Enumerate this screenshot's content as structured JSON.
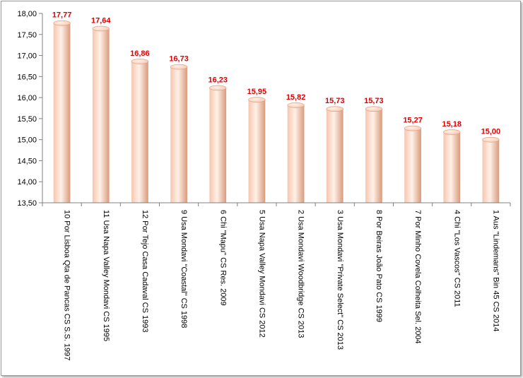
{
  "chart_data": {
    "type": "bar",
    "orientation": "vertical",
    "title": "",
    "xlabel": "",
    "ylabel": "",
    "ylim": [
      13.5,
      18.0
    ],
    "ytick_step": 0.5,
    "ytick_labels": [
      "13,50",
      "14,00",
      "14,50",
      "15,00",
      "15,50",
      "16,00",
      "16,50",
      "17,00",
      "17,50",
      "18,00"
    ],
    "grid": false,
    "legend": "none",
    "categories": [
      "10 Por Lisboa Qta de Pancas CS S.S. 1997",
      "11 Usa Napa Valley Mondavi CS 1995",
      "12 Por Tejo Casa Cadaval CS 1993",
      "9 Usa Mondavi \"Coastal\" CS 1998",
      "6 Chi \"Mapu\" CS Res. 2009",
      "5 Usa Napa Valley Mondavi CS 2012",
      "2 Usa Mondavi Woodbridge CS 2013",
      "3 Usa Mondavi \"Private Select\" CS 2013",
      "8 Por Beiras João Pato CS 1999",
      "7 Por Minho Covela Colheita Sel. 2004",
      "4 Chi \"Los Vascos\" CS 2011",
      "1 Aus \"Lindemans\" Bin 45 CS 2014"
    ],
    "values": [
      17.77,
      17.64,
      16.86,
      16.73,
      16.23,
      15.95,
      15.82,
      15.73,
      15.73,
      15.27,
      15.18,
      15.0
    ],
    "data_labels": [
      "17,77",
      "17,64",
      "16,86",
      "16,73",
      "16,23",
      "15,95",
      "15,82",
      "15,73",
      "15,73",
      "15,27",
      "15,18",
      "15,00"
    ],
    "colors": {
      "bar_light": "#fff1e8",
      "bar_mid": "#f6c6ae",
      "bar_dark": "#d99a7c",
      "data_label": "#e00000",
      "axis": "#808080"
    }
  }
}
